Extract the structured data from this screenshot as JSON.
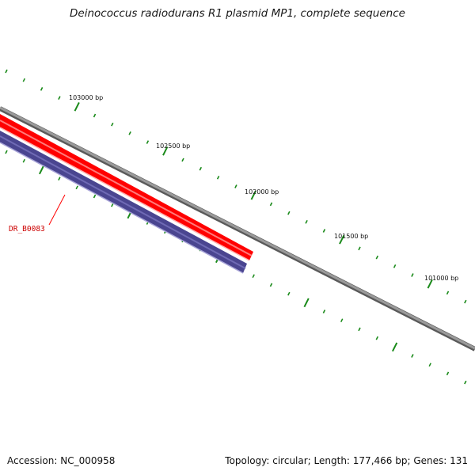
{
  "title": "Deinococcus radiodurans R1 plasmid MP1, complete sequence",
  "accession_text": "Accession: NC_000958",
  "info_text": "Topology: circular; Length: 177,466 bp; Genes: 131",
  "ruler": {
    "labels": [
      "103000 bp",
      "102500 bp",
      "102000 bp",
      "101500 bp",
      "101000 bp"
    ],
    "color": "#1a8a1a"
  },
  "backbone": {
    "color": "#808080"
  },
  "features": [
    {
      "name": "",
      "color": "#ff0000"
    },
    {
      "name": "DR_B0083",
      "color": "#4a4590"
    }
  ]
}
